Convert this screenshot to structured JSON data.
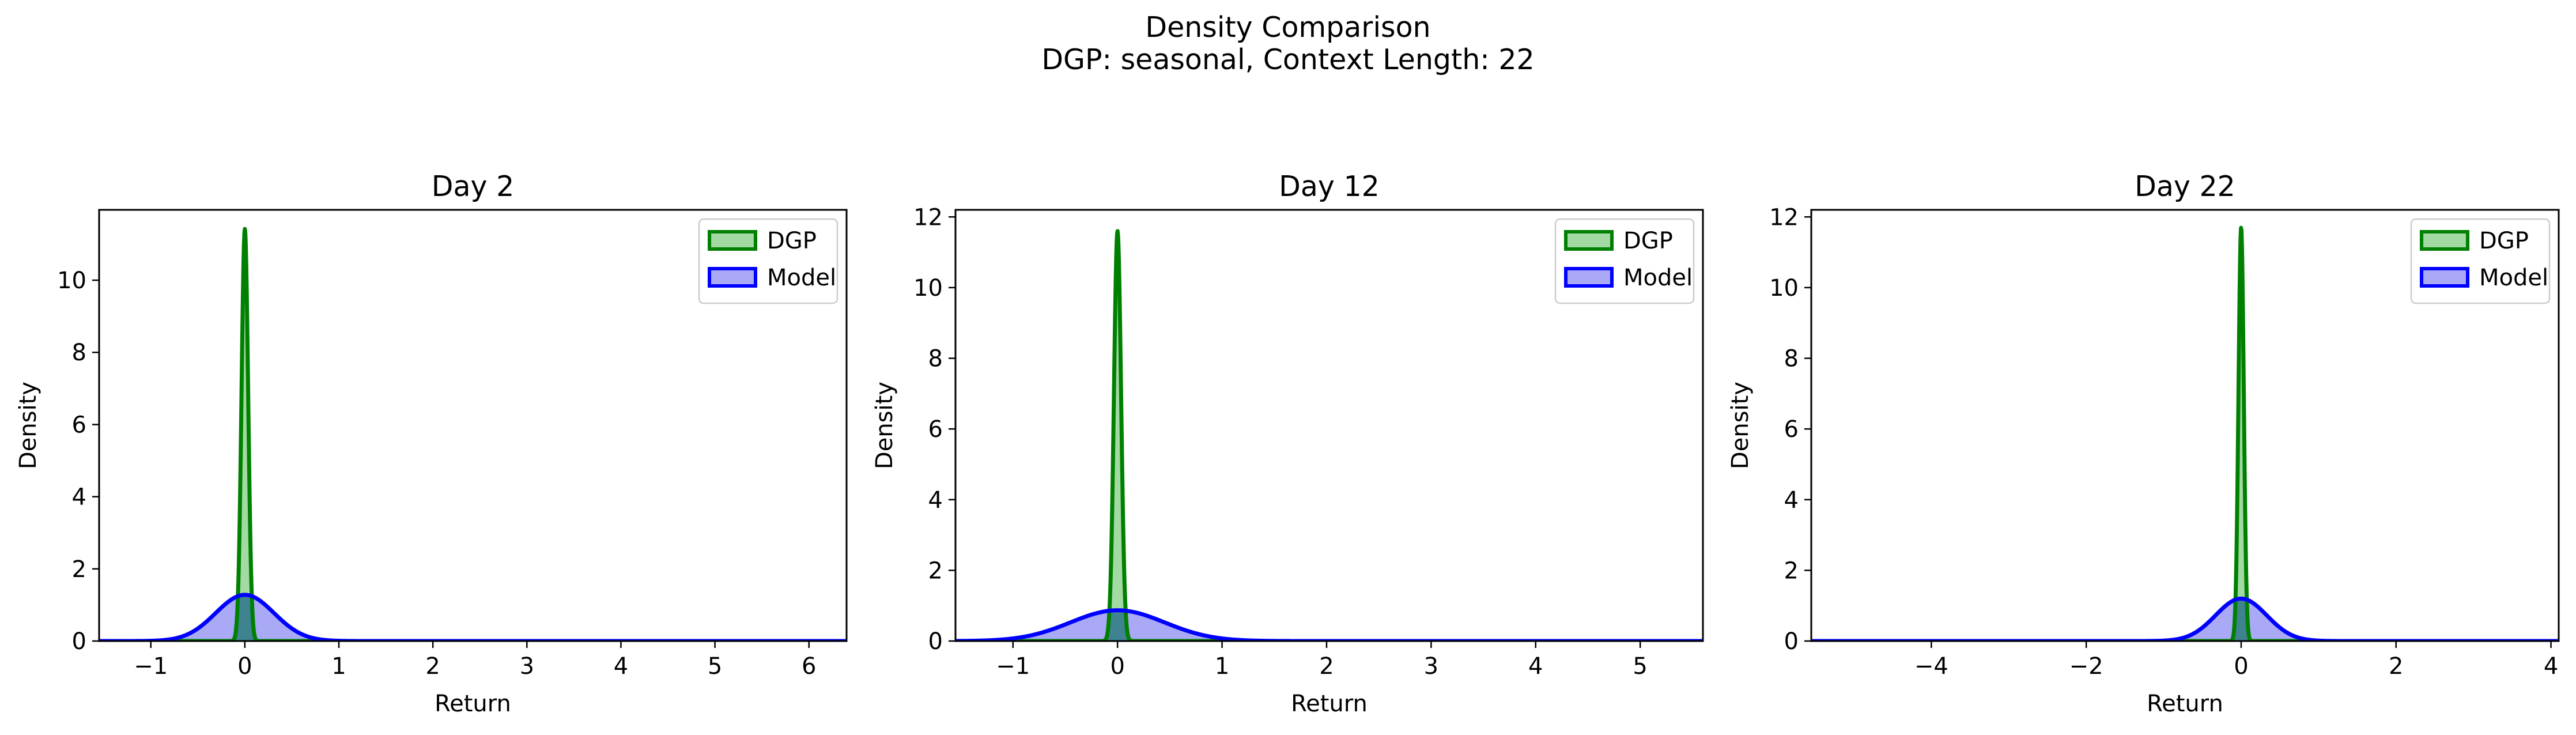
{
  "figure": {
    "title_line1": "Density Comparison",
    "title_line2": "DGP: seasonal, Context Length: 22"
  },
  "colors": {
    "dgp_line": "#008000",
    "dgp_fill": "#a3d9a3",
    "model_line": "#0000ff",
    "model_fill": "#a9a9f6",
    "overlap_fill": "#3f8390",
    "axes": "#000000",
    "background": "#ffffff"
  },
  "chart_data": [
    {
      "type": "area",
      "title": "Day 2",
      "xlabel": "Return",
      "ylabel": "Density",
      "xlim": [
        -1.55,
        6.4
      ],
      "ylim": [
        0,
        11.95
      ],
      "xticks": [
        -1,
        0,
        1,
        2,
        3,
        4,
        5,
        6
      ],
      "xtick_labels": [
        "−1",
        "0",
        "1",
        "2",
        "3",
        "4",
        "5",
        "6"
      ],
      "yticks": [
        0,
        2,
        4,
        6,
        8,
        10
      ],
      "ytick_labels": [
        "0",
        "2",
        "4",
        "6",
        "8",
        "10"
      ],
      "legend": "top-right",
      "series": [
        {
          "name": "DGP",
          "kind": "gaussian",
          "mean": 0.0,
          "sd": 0.035,
          "peak": 11.42
        },
        {
          "name": "Model",
          "kind": "gaussian",
          "mean": 0.0,
          "sd": 0.31,
          "peak": 1.28
        }
      ]
    },
    {
      "type": "area",
      "title": "Day 12",
      "xlabel": "Return",
      "ylabel": "Density",
      "xlim": [
        -1.55,
        5.6
      ],
      "ylim": [
        0,
        12.2
      ],
      "xticks": [
        -1,
        0,
        1,
        2,
        3,
        4,
        5
      ],
      "xtick_labels": [
        "−1",
        "0",
        "1",
        "2",
        "3",
        "4",
        "5"
      ],
      "yticks": [
        0,
        2,
        4,
        6,
        8,
        10,
        12
      ],
      "ytick_labels": [
        "0",
        "2",
        "4",
        "6",
        "8",
        "10",
        "12"
      ],
      "legend": "top-right",
      "series": [
        {
          "name": "DGP",
          "kind": "gaussian",
          "mean": 0.0,
          "sd": 0.034,
          "peak": 11.6
        },
        {
          "name": "Model",
          "kind": "gaussian",
          "mean": 0.0,
          "sd": 0.45,
          "peak": 0.87
        }
      ]
    },
    {
      "type": "area",
      "title": "Day 22",
      "xlabel": "Return",
      "ylabel": "Density",
      "xlim": [
        -5.55,
        4.1
      ],
      "ylim": [
        0,
        12.2
      ],
      "xticks": [
        -4,
        -2,
        0,
        2,
        4
      ],
      "xtick_labels": [
        "−4",
        "−2",
        "0",
        "2",
        "4"
      ],
      "yticks": [
        0,
        2,
        4,
        6,
        8,
        10,
        12
      ],
      "ytick_labels": [
        "0",
        "2",
        "4",
        "6",
        "8",
        "10",
        "12"
      ],
      "legend": "top-right",
      "series": [
        {
          "name": "DGP",
          "kind": "gaussian",
          "mean": 0.0,
          "sd": 0.034,
          "peak": 11.7
        },
        {
          "name": "Model",
          "kind": "gaussian",
          "mean": 0.0,
          "sd": 0.33,
          "peak": 1.2
        }
      ]
    }
  ]
}
